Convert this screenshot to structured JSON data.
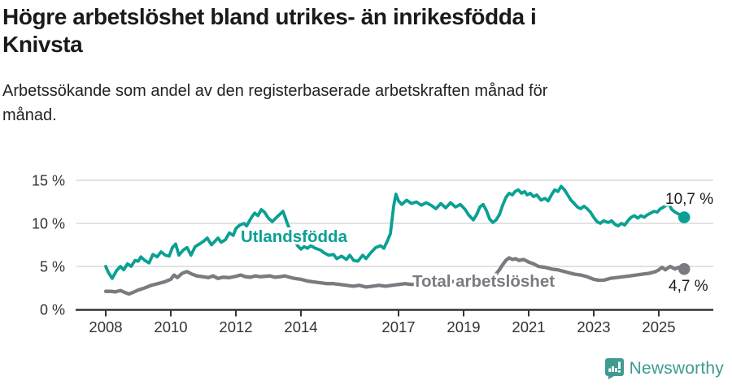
{
  "chart_data": {
    "type": "line",
    "title": "Högre arbetslöshet bland utrikes- än inrikesfödda i\nKnivsta",
    "subtitle": "Arbetssökande som andel av den registerbaserade arbetskraften månad för\nmånad.",
    "unit": "%",
    "grid": true,
    "legend_position": "inline-labels",
    "xlim": [
      2007.6,
      2026.2
    ],
    "ylim": [
      0,
      15
    ],
    "x_tick_years": [
      2008,
      2010,
      2012,
      2014,
      2017,
      2019,
      2021,
      2023,
      2025
    ],
    "y_ticks": [
      {
        "value": 0,
        "label": "0 %"
      },
      {
        "value": 5,
        "label": "5 %"
      },
      {
        "value": 10,
        "label": "10 %"
      },
      {
        "value": 15,
        "label": "15 %"
      }
    ],
    "series": [
      {
        "name": "Utlandsfödda",
        "color": "#0aa094",
        "end_label": "10,7 %",
        "latest_value": 10.7,
        "points": [
          [
            2008.0,
            5.0
          ],
          [
            2008.08,
            4.3
          ],
          [
            2008.2,
            3.6
          ],
          [
            2008.33,
            4.5
          ],
          [
            2008.45,
            5.0
          ],
          [
            2008.55,
            4.6
          ],
          [
            2008.67,
            5.3
          ],
          [
            2008.78,
            5.0
          ],
          [
            2008.9,
            5.7
          ],
          [
            2009.0,
            5.6
          ],
          [
            2009.08,
            6.1
          ],
          [
            2009.2,
            5.7
          ],
          [
            2009.33,
            5.4
          ],
          [
            2009.45,
            6.4
          ],
          [
            2009.58,
            6.1
          ],
          [
            2009.7,
            6.7
          ],
          [
            2009.83,
            6.3
          ],
          [
            2009.95,
            6.2
          ],
          [
            2010.05,
            7.2
          ],
          [
            2010.15,
            7.6
          ],
          [
            2010.25,
            6.3
          ],
          [
            2010.38,
            6.9
          ],
          [
            2010.5,
            7.2
          ],
          [
            2010.62,
            6.3
          ],
          [
            2010.75,
            7.3
          ],
          [
            2010.88,
            7.6
          ],
          [
            2011.0,
            7.9
          ],
          [
            2011.12,
            8.3
          ],
          [
            2011.25,
            7.5
          ],
          [
            2011.35,
            7.9
          ],
          [
            2011.45,
            8.3
          ],
          [
            2011.55,
            7.8
          ],
          [
            2011.68,
            8.1
          ],
          [
            2011.8,
            8.9
          ],
          [
            2011.92,
            8.6
          ],
          [
            2012.0,
            9.4
          ],
          [
            2012.12,
            9.8
          ],
          [
            2012.25,
            10.0
          ],
          [
            2012.33,
            9.7
          ],
          [
            2012.42,
            10.3
          ],
          [
            2012.5,
            10.8
          ],
          [
            2012.58,
            11.2
          ],
          [
            2012.68,
            10.9
          ],
          [
            2012.78,
            11.6
          ],
          [
            2012.88,
            11.3
          ],
          [
            2013.0,
            10.6
          ],
          [
            2013.12,
            10.2
          ],
          [
            2013.28,
            10.8
          ],
          [
            2013.45,
            11.4
          ],
          [
            2013.6,
            9.8
          ],
          [
            2013.75,
            8.4
          ],
          [
            2013.9,
            7.4
          ],
          [
            2014.0,
            7.0
          ],
          [
            2014.1,
            7.3
          ],
          [
            2014.2,
            7.1
          ],
          [
            2014.3,
            7.4
          ],
          [
            2014.45,
            7.1
          ],
          [
            2014.6,
            6.9
          ],
          [
            2014.7,
            6.6
          ],
          [
            2014.85,
            6.3
          ],
          [
            2015.0,
            6.4
          ],
          [
            2015.1,
            5.9
          ],
          [
            2015.25,
            6.2
          ],
          [
            2015.4,
            5.8
          ],
          [
            2015.5,
            6.3
          ],
          [
            2015.62,
            5.7
          ],
          [
            2015.75,
            5.6
          ],
          [
            2015.9,
            6.3
          ],
          [
            2016.0,
            5.9
          ],
          [
            2016.15,
            6.6
          ],
          [
            2016.3,
            7.2
          ],
          [
            2016.45,
            7.4
          ],
          [
            2016.55,
            7.1
          ],
          [
            2016.65,
            7.9
          ],
          [
            2016.75,
            8.8
          ],
          [
            2016.85,
            12.0
          ],
          [
            2016.92,
            13.4
          ],
          [
            2017.0,
            12.6
          ],
          [
            2017.1,
            12.2
          ],
          [
            2017.25,
            12.7
          ],
          [
            2017.4,
            12.3
          ],
          [
            2017.55,
            12.5
          ],
          [
            2017.7,
            12.1
          ],
          [
            2017.85,
            12.4
          ],
          [
            2018.0,
            12.1
          ],
          [
            2018.15,
            11.7
          ],
          [
            2018.3,
            12.3
          ],
          [
            2018.45,
            11.8
          ],
          [
            2018.6,
            12.4
          ],
          [
            2018.75,
            11.9
          ],
          [
            2018.9,
            12.2
          ],
          [
            2019.05,
            11.6
          ],
          [
            2019.15,
            11.0
          ],
          [
            2019.3,
            10.4
          ],
          [
            2019.4,
            11.0
          ],
          [
            2019.5,
            11.9
          ],
          [
            2019.6,
            12.2
          ],
          [
            2019.7,
            11.5
          ],
          [
            2019.8,
            10.5
          ],
          [
            2019.9,
            10.1
          ],
          [
            2020.0,
            10.4
          ],
          [
            2020.1,
            11.0
          ],
          [
            2020.2,
            12.1
          ],
          [
            2020.3,
            13.0
          ],
          [
            2020.4,
            13.5
          ],
          [
            2020.5,
            13.3
          ],
          [
            2020.58,
            13.7
          ],
          [
            2020.68,
            13.9
          ],
          [
            2020.78,
            13.5
          ],
          [
            2020.88,
            13.7
          ],
          [
            2020.95,
            13.3
          ],
          [
            2021.05,
            13.5
          ],
          [
            2021.15,
            13.1
          ],
          [
            2021.25,
            13.3
          ],
          [
            2021.38,
            12.7
          ],
          [
            2021.5,
            12.9
          ],
          [
            2021.6,
            12.6
          ],
          [
            2021.7,
            13.3
          ],
          [
            2021.8,
            13.9
          ],
          [
            2021.9,
            13.7
          ],
          [
            2022.0,
            14.3
          ],
          [
            2022.1,
            13.9
          ],
          [
            2022.2,
            13.3
          ],
          [
            2022.3,
            12.7
          ],
          [
            2022.4,
            12.3
          ],
          [
            2022.5,
            11.9
          ],
          [
            2022.6,
            11.7
          ],
          [
            2022.7,
            12.0
          ],
          [
            2022.8,
            11.7
          ],
          [
            2022.9,
            11.3
          ],
          [
            2023.0,
            10.7
          ],
          [
            2023.1,
            10.2
          ],
          [
            2023.2,
            10.0
          ],
          [
            2023.3,
            10.3
          ],
          [
            2023.45,
            10.1
          ],
          [
            2023.55,
            10.3
          ],
          [
            2023.65,
            9.9
          ],
          [
            2023.75,
            9.7
          ],
          [
            2023.85,
            10.0
          ],
          [
            2023.95,
            9.8
          ],
          [
            2024.05,
            10.3
          ],
          [
            2024.15,
            10.7
          ],
          [
            2024.25,
            10.9
          ],
          [
            2024.35,
            10.6
          ],
          [
            2024.45,
            10.9
          ],
          [
            2024.55,
            10.7
          ],
          [
            2024.65,
            11.0
          ],
          [
            2024.75,
            11.2
          ],
          [
            2024.85,
            11.4
          ],
          [
            2024.95,
            11.3
          ],
          [
            2025.05,
            11.7
          ],
          [
            2025.15,
            11.9
          ],
          [
            2025.3,
            12.3
          ],
          [
            2025.4,
            11.6
          ],
          [
            2025.5,
            11.3
          ],
          [
            2025.6,
            11.1
          ],
          [
            2025.7,
            10.9
          ],
          [
            2025.78,
            10.7
          ]
        ]
      },
      {
        "name": "Total arbetslöshet",
        "color": "#7b7a80",
        "end_label": "4,7 %",
        "latest_value": 4.7,
        "points": [
          [
            2008.0,
            2.1
          ],
          [
            2008.15,
            2.1
          ],
          [
            2008.3,
            2.05
          ],
          [
            2008.45,
            2.2
          ],
          [
            2008.6,
            1.95
          ],
          [
            2008.72,
            1.8
          ],
          [
            2008.85,
            2.0
          ],
          [
            2009.0,
            2.25
          ],
          [
            2009.2,
            2.5
          ],
          [
            2009.4,
            2.8
          ],
          [
            2009.6,
            3.0
          ],
          [
            2009.8,
            3.2
          ],
          [
            2010.0,
            3.5
          ],
          [
            2010.1,
            4.0
          ],
          [
            2010.2,
            3.7
          ],
          [
            2010.35,
            4.2
          ],
          [
            2010.5,
            4.4
          ],
          [
            2010.65,
            4.1
          ],
          [
            2010.8,
            3.9
          ],
          [
            2011.0,
            3.8
          ],
          [
            2011.15,
            3.7
          ],
          [
            2011.3,
            3.9
          ],
          [
            2011.45,
            3.6
          ],
          [
            2011.6,
            3.75
          ],
          [
            2011.8,
            3.7
          ],
          [
            2012.0,
            3.85
          ],
          [
            2012.15,
            4.0
          ],
          [
            2012.3,
            3.8
          ],
          [
            2012.45,
            3.75
          ],
          [
            2012.6,
            3.9
          ],
          [
            2012.75,
            3.8
          ],
          [
            2012.9,
            3.85
          ],
          [
            2013.05,
            3.9
          ],
          [
            2013.2,
            3.75
          ],
          [
            2013.35,
            3.8
          ],
          [
            2013.5,
            3.9
          ],
          [
            2013.65,
            3.75
          ],
          [
            2013.8,
            3.6
          ],
          [
            2014.0,
            3.5
          ],
          [
            2014.2,
            3.3
          ],
          [
            2014.4,
            3.2
          ],
          [
            2014.6,
            3.1
          ],
          [
            2014.8,
            3.0
          ],
          [
            2015.0,
            3.0
          ],
          [
            2015.2,
            2.9
          ],
          [
            2015.4,
            2.8
          ],
          [
            2015.6,
            2.7
          ],
          [
            2015.8,
            2.8
          ],
          [
            2016.0,
            2.6
          ],
          [
            2016.2,
            2.7
          ],
          [
            2016.4,
            2.8
          ],
          [
            2016.6,
            2.7
          ],
          [
            2016.8,
            2.8
          ],
          [
            2017.0,
            2.9
          ],
          [
            2017.2,
            3.0
          ],
          [
            2017.4,
            2.9
          ],
          [
            2017.6,
            3.0
          ],
          [
            2017.8,
            3.1
          ],
          [
            2018.0,
            3.1
          ],
          [
            2018.2,
            3.2
          ],
          [
            2018.4,
            3.1
          ],
          [
            2018.6,
            3.2
          ],
          [
            2018.8,
            3.3
          ],
          [
            2019.0,
            3.3
          ],
          [
            2019.2,
            3.4
          ],
          [
            2019.4,
            3.3
          ],
          [
            2019.6,
            3.4
          ],
          [
            2019.8,
            3.6
          ],
          [
            2019.95,
            3.9
          ],
          [
            2020.1,
            4.6
          ],
          [
            2020.2,
            5.2
          ],
          [
            2020.3,
            5.7
          ],
          [
            2020.4,
            6.0
          ],
          [
            2020.5,
            5.8
          ],
          [
            2020.6,
            5.9
          ],
          [
            2020.7,
            5.7
          ],
          [
            2020.85,
            5.8
          ],
          [
            2021.0,
            5.5
          ],
          [
            2021.15,
            5.3
          ],
          [
            2021.3,
            5.0
          ],
          [
            2021.5,
            4.9
          ],
          [
            2021.7,
            4.7
          ],
          [
            2021.9,
            4.6
          ],
          [
            2022.0,
            4.5
          ],
          [
            2022.2,
            4.3
          ],
          [
            2022.4,
            4.1
          ],
          [
            2022.6,
            4.0
          ],
          [
            2022.8,
            3.8
          ],
          [
            2023.0,
            3.5
          ],
          [
            2023.15,
            3.4
          ],
          [
            2023.3,
            3.4
          ],
          [
            2023.5,
            3.6
          ],
          [
            2023.7,
            3.7
          ],
          [
            2023.9,
            3.8
          ],
          [
            2024.1,
            3.9
          ],
          [
            2024.3,
            4.0
          ],
          [
            2024.5,
            4.1
          ],
          [
            2024.7,
            4.2
          ],
          [
            2024.9,
            4.4
          ],
          [
            2025.0,
            4.6
          ],
          [
            2025.1,
            4.9
          ],
          [
            2025.2,
            4.6
          ],
          [
            2025.35,
            5.0
          ],
          [
            2025.5,
            4.7
          ],
          [
            2025.6,
            4.9
          ],
          [
            2025.78,
            4.7
          ]
        ]
      }
    ],
    "colors": {
      "axis_text": "#333333",
      "gridline": "#d9d9d9",
      "axis_line": "#333333",
      "end_label_text": "#1a1a1a"
    }
  },
  "footer": {
    "brand": "Newsworthy",
    "logo_color": "#3f9b92"
  }
}
